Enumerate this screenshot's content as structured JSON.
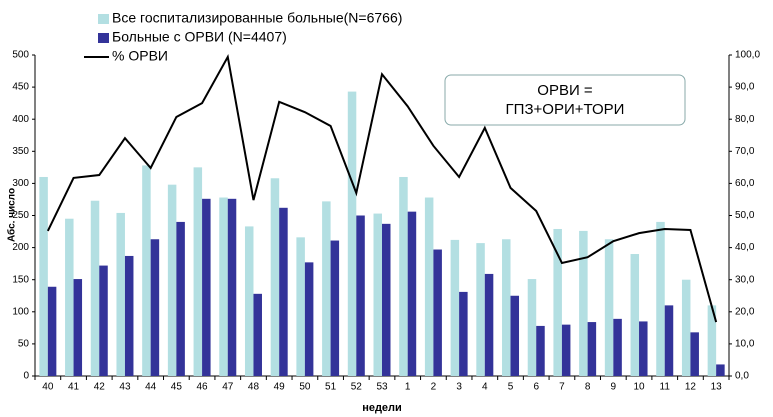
{
  "chart_data": {
    "type": "bar-line",
    "categories": [
      "40",
      "41",
      "42",
      "43",
      "44",
      "45",
      "46",
      "47",
      "48",
      "49",
      "50",
      "51",
      "52",
      "53",
      "1",
      "2",
      "3",
      "4",
      "5",
      "6",
      "7",
      "8",
      "9",
      "10",
      "11",
      "12",
      "13"
    ],
    "series": [
      {
        "name": "Все госпитализированные больные(N=6766)",
        "type": "bar",
        "color": "#b3dfe2",
        "values": [
          310,
          245,
          273,
          254,
          328,
          298,
          325,
          278,
          233,
          308,
          216,
          272,
          443,
          253,
          310,
          278,
          212,
          207,
          213,
          151,
          229,
          226,
          213,
          190,
          240,
          150,
          110
        ]
      },
      {
        "name": "Больные с ОРВИ (N=4407)",
        "type": "bar",
        "color": "#333399",
        "values": [
          139,
          151,
          172,
          187,
          213,
          240,
          276,
          276,
          128,
          262,
          177,
          211,
          250,
          237,
          256,
          197,
          131,
          159,
          125,
          78,
          80,
          84,
          89,
          85,
          110,
          68,
          18
        ]
      },
      {
        "name": "% ОРВИ",
        "type": "line",
        "color": "#000000",
        "axis": "y2",
        "values": [
          45.2,
          61.7,
          62.6,
          74.1,
          64.8,
          80.7,
          85,
          99.4,
          54.8,
          85.4,
          82.2,
          77.9,
          57,
          94,
          84,
          71.7,
          62,
          77.3,
          58.6,
          51.4,
          35.2,
          37,
          42,
          44.5,
          45.8,
          45.5,
          16.8
        ]
      }
    ],
    "y_label": "Абс. число",
    "x_label": "недели",
    "ylim": [
      0,
      500
    ],
    "yticks": [
      0,
      50,
      100,
      150,
      200,
      250,
      300,
      350,
      400,
      450,
      500
    ],
    "y2lim": [
      0,
      100
    ],
    "y2ticks": [
      {
        "value": 0,
        "label": "0,0"
      },
      {
        "value": 10,
        "label": "10,0"
      },
      {
        "value": 20,
        "label": "20,0"
      },
      {
        "value": 30,
        "label": "30,0"
      },
      {
        "value": 40,
        "label": "40,0"
      },
      {
        "value": 50,
        "label": "50,0"
      },
      {
        "value": 60,
        "label": "60,0"
      },
      {
        "value": 70,
        "label": "70,0"
      },
      {
        "value": 80,
        "label": "80,0"
      },
      {
        "value": 90,
        "label": "90,0"
      },
      {
        "value": 100,
        "label": "100,0"
      }
    ],
    "annotation": {
      "lines": [
        "ОРВИ =",
        "ГПЗ+ОРИ+ТОРИ"
      ]
    },
    "grid": false,
    "legend": "top-left"
  }
}
